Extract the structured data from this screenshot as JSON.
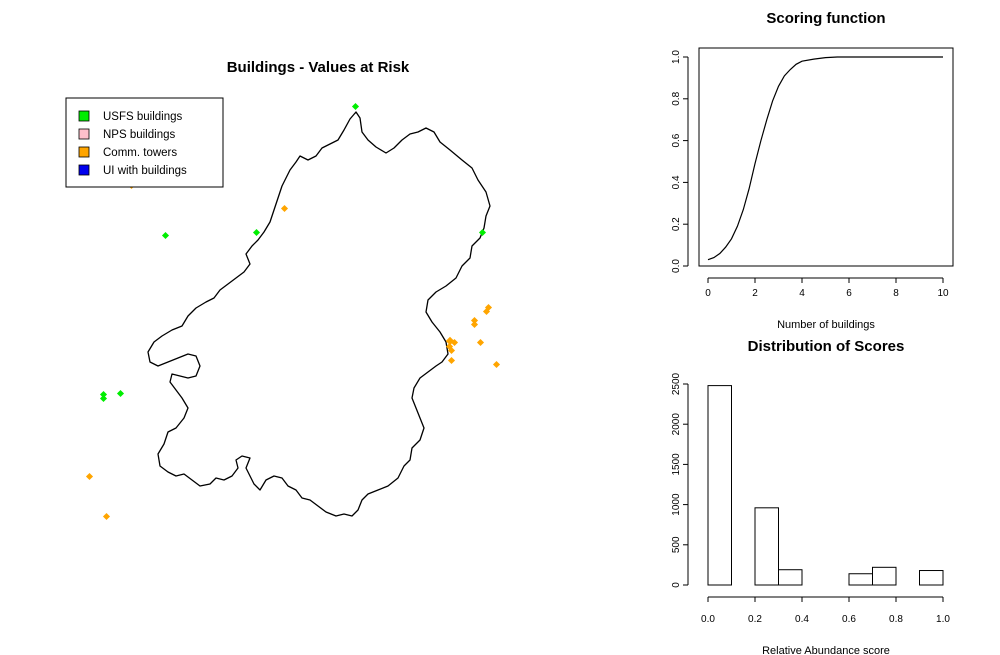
{
  "chart_data": [
    {
      "type": "scatter",
      "title": "Buildings - Values at Risk",
      "legend": {
        "placement": "top-left",
        "entries": [
          {
            "label": "USFS buildings",
            "color": "#00ee00"
          },
          {
            "label": "NPS buildings",
            "color": "#ffc0cb"
          },
          {
            "label": "Comm. towers",
            "color": "#ffa500"
          },
          {
            "label": "UI with buildings",
            "color": "#0000ee"
          }
        ]
      }
    },
    {
      "type": "line",
      "title": "Scoring function",
      "xlabel": "Number of buildings",
      "ylabel": "",
      "xlim": [
        0,
        10
      ],
      "ylim": [
        0,
        1
      ],
      "xticks": [
        "0",
        "2",
        "4",
        "6",
        "8",
        "10"
      ],
      "yticks": [
        "0.0",
        "0.2",
        "0.4",
        "0.6",
        "0.8",
        "1.0"
      ],
      "x": [
        0,
        0.25,
        0.5,
        0.75,
        1,
        1.25,
        1.5,
        1.75,
        2,
        2.25,
        2.5,
        2.75,
        3,
        3.25,
        3.5,
        3.75,
        4,
        4.5,
        5,
        5.5,
        6,
        7,
        8,
        9,
        10
      ],
      "y": [
        0.03,
        0.04,
        0.06,
        0.09,
        0.13,
        0.19,
        0.27,
        0.37,
        0.49,
        0.6,
        0.7,
        0.79,
        0.86,
        0.91,
        0.94,
        0.965,
        0.98,
        0.99,
        0.997,
        1.0,
        1.0,
        1.0,
        1.0,
        1.0,
        1.0
      ]
    },
    {
      "type": "bar",
      "title": "Distribution of Scores",
      "xlabel": "Relative Abundance score",
      "ylabel": "",
      "xlim": [
        0,
        1
      ],
      "ylim": [
        0,
        2500
      ],
      "xticks": [
        "0.0",
        "0.2",
        "0.4",
        "0.6",
        "0.8",
        "1.0"
      ],
      "yticks": [
        "0",
        "500",
        "1000",
        "1500",
        "2000",
        "2500"
      ],
      "bins": [
        [
          0,
          0.1
        ],
        [
          0.1,
          0.2
        ],
        [
          0.2,
          0.3
        ],
        [
          0.3,
          0.4
        ],
        [
          0.4,
          0.5
        ],
        [
          0.5,
          0.6
        ],
        [
          0.6,
          0.7
        ],
        [
          0.7,
          0.8
        ],
        [
          0.8,
          0.9
        ],
        [
          0.9,
          1.0
        ]
      ],
      "values": [
        2480,
        0,
        960,
        190,
        0,
        0,
        140,
        220,
        0,
        180
      ]
    }
  ]
}
